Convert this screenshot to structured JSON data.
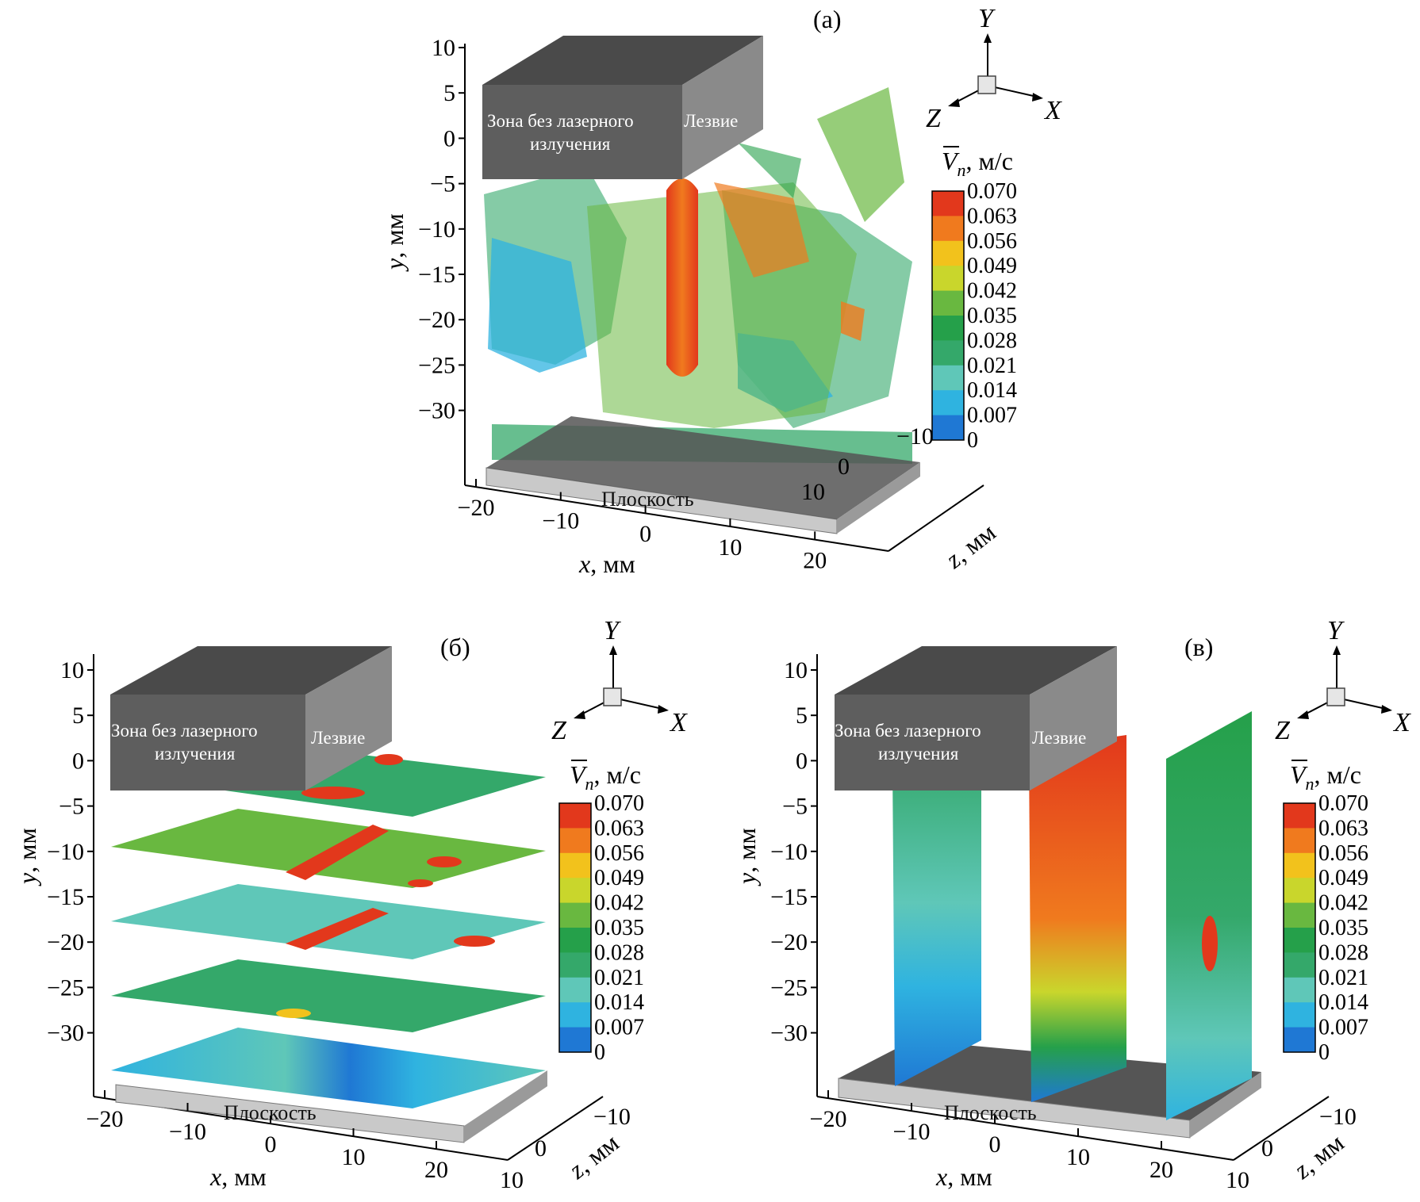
{
  "colors": {
    "scale": [
      "#1f3fa6",
      "#1f78d4",
      "#2fb3e0",
      "#5fc7b8",
      "#34a86a",
      "#25a04a",
      "#69b840",
      "#c9d62c",
      "#f2c21c",
      "#f07a1e",
      "#e2381c"
    ],
    "box_top": "#4a4a4a",
    "box_front": "#5e5e5e",
    "box_side": "#8a8a8a",
    "plane_top": "#555555",
    "plane_front": "#c9c9c9"
  },
  "chart_data": [
    {
      "id": "a",
      "type": "3d-isosurface",
      "panel_label": "(а)",
      "xlabel": "x",
      "xunit": ", мм",
      "ylabel": "y",
      "yunit": ", мм",
      "zlabel": "z",
      "zunit": ", мм",
      "xticks": [
        "−20",
        "−10",
        "0",
        "10",
        "20"
      ],
      "yticks": [
        "10",
        "5",
        "0",
        "−5",
        "−10",
        "−15",
        "−20",
        "−25",
        "−30"
      ],
      "zticks": [
        "−10",
        "0",
        "10"
      ],
      "xlim": [
        -20,
        20
      ],
      "ylim": [
        -30,
        10
      ],
      "zlim": [
        -10,
        10
      ],
      "box_label_left": [
        "Зона без лазерного",
        "излучения"
      ],
      "box_label_right": "Лезвие",
      "plane_label": "Плоскость",
      "colorbar": {
        "var": "V",
        "sub": "n",
        "unit": ", м/с",
        "ticks": [
          "0.070",
          "0.063",
          "0.056",
          "0.049",
          "0.042",
          "0.035",
          "0.028",
          "0.021",
          "0.014",
          "0.007",
          "0"
        ],
        "range": [
          0,
          0.07
        ]
      },
      "triad": {
        "x": "X",
        "y": "Y",
        "z": "Z"
      }
    },
    {
      "id": "b",
      "type": "3d-horizontal-slices",
      "panel_label": "(б)",
      "xlabel": "x",
      "xunit": ", мм",
      "ylabel": "y",
      "yunit": ", мм",
      "zlabel": "z",
      "zunit": ", мм",
      "xticks": [
        "−20",
        "−10",
        "0",
        "10",
        "20"
      ],
      "yticks": [
        "10",
        "5",
        "0",
        "−5",
        "−10",
        "−15",
        "−20",
        "−25",
        "−30"
      ],
      "zticks": [
        "−10",
        "0",
        "10"
      ],
      "slice_y": [
        -1,
        -8,
        -15,
        -22,
        -29
      ],
      "box_label_left": [
        "Зона без лазерного",
        "излучения"
      ],
      "box_label_right": "Лезвие",
      "plane_label": "Плоскость",
      "colorbar": {
        "var": "V",
        "sub": "n",
        "unit": ", м/с",
        "ticks": [
          "0.070",
          "0.063",
          "0.056",
          "0.049",
          "0.042",
          "0.035",
          "0.028",
          "0.021",
          "0.014",
          "0.007",
          "0"
        ],
        "range": [
          0,
          0.07
        ]
      },
      "triad": {
        "x": "X",
        "y": "Y",
        "z": "Z"
      }
    },
    {
      "id": "c",
      "type": "3d-vertical-slices",
      "panel_label": "(в)",
      "xlabel": "x",
      "xunit": ", мм",
      "ylabel": "y",
      "yunit": ", мм",
      "zlabel": "z",
      "zunit": ", мм",
      "xticks": [
        "−20",
        "−10",
        "0",
        "10",
        "20"
      ],
      "yticks": [
        "10",
        "5",
        "0",
        "−5",
        "−10",
        "−15",
        "−20",
        "−25",
        "−30"
      ],
      "zticks": [
        "−10",
        "0",
        "10"
      ],
      "slice_x": [
        -15,
        0,
        15
      ],
      "box_label_left": [
        "Зона без лазерного",
        "излучения"
      ],
      "box_label_right": "Лезвие",
      "plane_label": "Плоскость",
      "colorbar": {
        "var": "V",
        "sub": "n",
        "unit": ", м/с",
        "ticks": [
          "0.070",
          "0.063",
          "0.056",
          "0.049",
          "0.042",
          "0.035",
          "0.028",
          "0.021",
          "0.014",
          "0.007",
          "0"
        ],
        "range": [
          0,
          0.07
        ]
      },
      "triad": {
        "x": "X",
        "y": "Y",
        "z": "Z"
      }
    }
  ]
}
